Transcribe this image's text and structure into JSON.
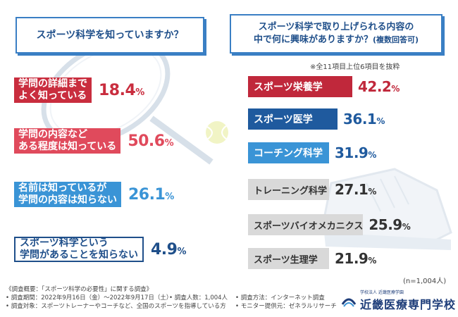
{
  "questions": {
    "q1": "スポーツ科学を知っていますか？",
    "q2_line1": "スポーツ科学で取り上げられる内容の",
    "q2_line2": "中で何に興味がありますか？",
    "q2_suffix": "(複数回答可)"
  },
  "top_note": "※全11項目上位6項目を抜粋",
  "answers": [
    {
      "label": "学問の詳細まで\nよく知っている",
      "value": "18.4",
      "color": "#c92d3e",
      "style": "solid"
    },
    {
      "label": "学問の内容など\nある程度は知っている",
      "value": "50.6",
      "color": "#e04a5c",
      "style": "solid"
    },
    {
      "label": "名前は知っているが\n学問の内容は知らない",
      "value": "26.1",
      "color": "#3a94d6",
      "style": "solid"
    },
    {
      "label": "スポーツ科学という\n学問があることを知らない",
      "value": "4.9",
      "color": "#1f4f8a",
      "style": "outline"
    }
  ],
  "bars": [
    {
      "label": "スポーツ栄養学",
      "value": "42.2",
      "color": "#c0283b",
      "pct_color": "#c0283b"
    },
    {
      "label": "スポーツ医学",
      "value": "36.1",
      "color": "#1f5a9e",
      "pct_color": "#1f5a9e"
    },
    {
      "label": "コーチング科学",
      "value": "31.9",
      "color": "#3a94d6",
      "pct_color": "#1f5a9e"
    },
    {
      "label": "トレーニング科学",
      "value": "27.1",
      "color": "#d9d9d9",
      "pct_color": "#333333"
    },
    {
      "label": "スポーツバイオメカニクス",
      "value": "25.9",
      "color": "#d9d9d9",
      "pct_color": "#333333"
    },
    {
      "label": "スポーツ生理学",
      "value": "21.9",
      "color": "#d9d9d9",
      "pct_color": "#333333"
    }
  ],
  "percent_sign": "%",
  "sample_note": "(n=1,004人)",
  "footer": {
    "line1": "《調査概要：「スポーツ科学の必要性」に関する調査》",
    "period": "• 調査期間：2022年9月16日（金）〜2022年9月17日（土）",
    "target": "• 調査対象：スポーツトレーナーやコーチなど、全国のスポーツを指導している方",
    "count": "• 調査人数：1,004人",
    "method": "• 調査方法：インターネット調査",
    "monitor": "• モニター提供元：ゼネラルリサーチ"
  },
  "logo": {
    "sub": "学校法人 近畿医療学園",
    "main": "近畿医療専門学校"
  }
}
